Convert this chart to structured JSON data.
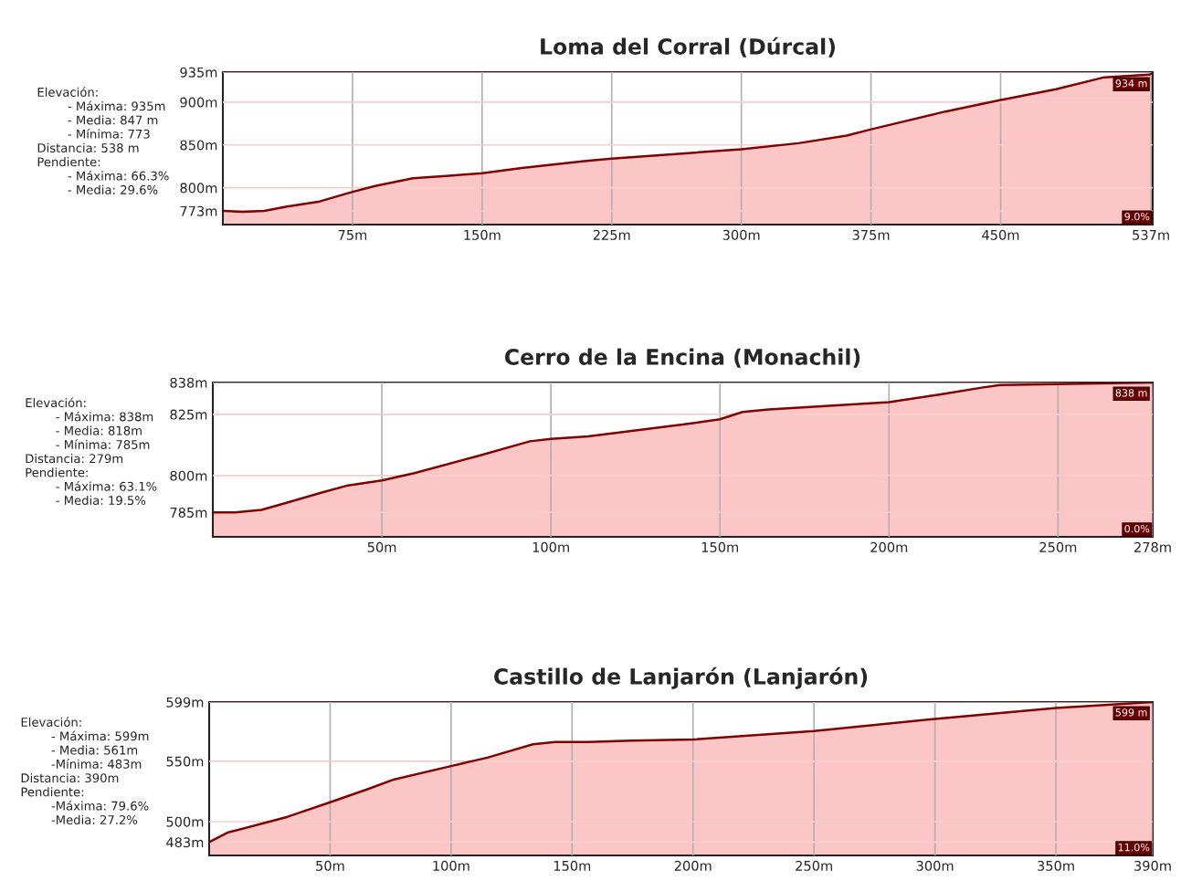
{
  "chart_data": [
    {
      "type": "area",
      "title": "Loma del Corral (Dúrcal)",
      "x": [
        0,
        11.7,
        24,
        37,
        56,
        74.6,
        88,
        110,
        131,
        150,
        173,
        209,
        225,
        300,
        333,
        361,
        374.6,
        418,
        448.8,
        482,
        510,
        536,
        538
      ],
      "series": [
        {
          "color": "#800000",
          "values": [
            773,
            772,
            773,
            778,
            784,
            795,
            802,
            811,
            814,
            817,
            823,
            831,
            834,
            845,
            852,
            861,
            868,
            889,
            902,
            915,
            929,
            932,
            934
          ]
        }
      ],
      "xlim": [
        0,
        538
      ],
      "ylim": [
        757,
        935
      ],
      "xticks": [
        {
          "value": 75,
          "label": "75m"
        },
        {
          "value": 150,
          "label": "150m"
        },
        {
          "value": 225,
          "label": "225m"
        },
        {
          "value": 300,
          "label": "300m"
        },
        {
          "value": 375,
          "label": "375m"
        },
        {
          "value": 450,
          "label": "450m"
        },
        {
          "value": 537,
          "label": "537m"
        }
      ],
      "yticks": [
        {
          "value": 773,
          "label": "773m"
        },
        {
          "value": 800,
          "label": "800m"
        },
        {
          "value": 850,
          "label": "850m"
        },
        {
          "value": 900,
          "label": "900m"
        },
        {
          "value": 935,
          "label": "935m"
        }
      ],
      "grid": true,
      "annotations": [
        "Elevación:\n        - Máxima: 935m\n        - Media: 847 m\n        - Mínima: 773\nDistancia: 538 m\nPendiente:\n        - Máxima: 66.3%\n        - Media: 29.6%",
        {
          "text": "934 m",
          "x": 538,
          "y": 934
        },
        "9.0%"
      ]
    },
    {
      "type": "area",
      "title": "Cerro de la Encina (Monachil)",
      "x": [
        0,
        6.6,
        14.4,
        22,
        32,
        40,
        50,
        59.6,
        78.4,
        93.8,
        100,
        111,
        140,
        150,
        156.7,
        164.4,
        200,
        214.4,
        227.8,
        232.8,
        278
      ],
      "series": [
        {
          "color": "#800000",
          "values": [
            785,
            785,
            786,
            789,
            793,
            796,
            798,
            801,
            808,
            814,
            815,
            816,
            821,
            823,
            826,
            827,
            830,
            833,
            836,
            837,
            838
          ]
        }
      ],
      "xlim": [
        0,
        278
      ],
      "ylim": [
        775,
        838
      ],
      "xticks": [
        {
          "value": 50,
          "label": "50m"
        },
        {
          "value": 100,
          "label": "100m"
        },
        {
          "value": 150,
          "label": "150m"
        },
        {
          "value": 200,
          "label": "200m"
        },
        {
          "value": 250,
          "label": "250m"
        },
        {
          "value": 278,
          "label": "278m"
        }
      ],
      "yticks": [
        {
          "value": 785,
          "label": "785m"
        },
        {
          "value": 800,
          "label": "800m"
        },
        {
          "value": 825,
          "label": "825m"
        },
        {
          "value": 838,
          "label": "838m"
        }
      ],
      "grid": true,
      "annotations": [
        "Elevación:\n        - Máxima: 838m\n        - Media: 818m\n        - Mínima: 785m\nDistancia: 279m\nPendiente:\n        - Máxima: 63.1%\n        - Media: 19.5%",
        {
          "text": "838 m",
          "x": 278,
          "y": 838
        },
        "0.0%"
      ]
    },
    {
      "type": "area",
      "title": "Castillo de Lanjarón (Lanjarón)",
      "x": [
        0,
        7.7,
        23.1,
        32.4,
        50,
        65.7,
        76.5,
        100,
        115,
        133.8,
        143,
        156.5,
        174.5,
        200,
        250,
        300,
        350,
        390
      ],
      "series": [
        {
          "color": "#800000",
          "values": [
            483,
            491,
            499,
            504,
            516,
            527,
            535,
            546,
            553,
            564,
            566,
            566,
            567,
            568,
            575,
            585,
            594,
            599
          ]
        }
      ],
      "xlim": [
        0,
        390
      ],
      "ylim": [
        472,
        599
      ],
      "xticks": [
        {
          "value": 50,
          "label": "50m"
        },
        {
          "value": 100,
          "label": "100m"
        },
        {
          "value": 150,
          "label": "150m"
        },
        {
          "value": 200,
          "label": "200m"
        },
        {
          "value": 250,
          "label": "250m"
        },
        {
          "value": 300,
          "label": "300m"
        },
        {
          "value": 350,
          "label": "350m"
        },
        {
          "value": 390,
          "label": "390m"
        }
      ],
      "yticks": [
        {
          "value": 483,
          "label": "483m"
        },
        {
          "value": 500,
          "label": "500m"
        },
        {
          "value": 550,
          "label": "550m"
        },
        {
          "value": 599,
          "label": "599m"
        }
      ],
      "grid": true,
      "annotations": [
        "Elevación:\n        - Máxima: 599m\n        - Media: 561m\n        -Mínima: 483m\nDistancia: 390m\nPendiente:\n        -Máxima: 79.6%\n        -Media: 27.2%",
        {
          "text": "599 m",
          "x": 390,
          "y": 599
        },
        "11.0%"
      ]
    }
  ]
}
